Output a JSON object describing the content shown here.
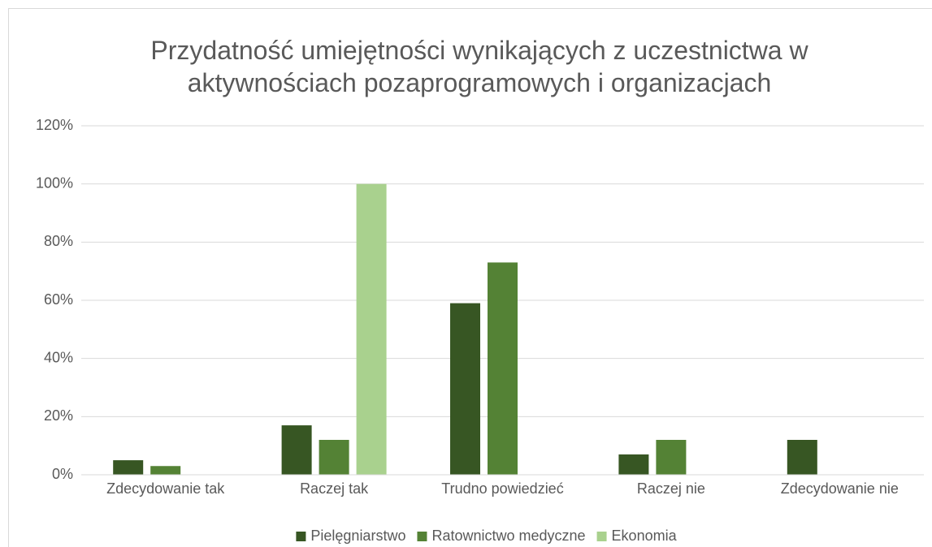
{
  "chart_data": {
    "type": "bar",
    "title": "Przydatność umiejętności wynikających z uczestnictwa w aktywnościach pozaprogramowych i organizacjach",
    "categories": [
      "Zdecydowanie tak",
      "Raczej tak",
      "Trudno powiedzieć",
      "Raczej nie",
      "Zdecydowanie nie"
    ],
    "series": [
      {
        "name": "Pielęgniarstwo",
        "color": "#375623",
        "values": [
          5,
          17,
          59,
          7,
          12
        ]
      },
      {
        "name": "Ratownictwo medyczne",
        "color": "#548235",
        "values": [
          3,
          12,
          73,
          12,
          0
        ]
      },
      {
        "name": "Ekonomia",
        "color": "#a9d18e",
        "values": [
          0,
          100,
          0,
          0,
          0
        ]
      }
    ],
    "ylim": [
      0,
      120
    ],
    "yticks": [
      {
        "value": 0,
        "label": "0%"
      },
      {
        "value": 20,
        "label": "20%"
      },
      {
        "value": 40,
        "label": "40%"
      },
      {
        "value": 60,
        "label": "60%"
      },
      {
        "value": 80,
        "label": "80%"
      },
      {
        "value": 100,
        "label": "100%"
      },
      {
        "value": 120,
        "label": "120%"
      }
    ],
    "grid": true,
    "legend": "bottom"
  }
}
